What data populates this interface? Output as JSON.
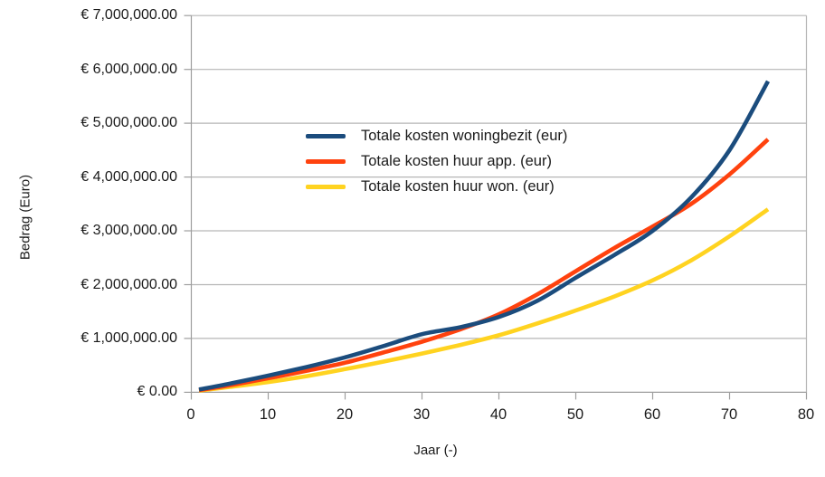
{
  "colors": {
    "background": "#ffffff",
    "gridline": "#b6b6b6",
    "axis": "#9e9e9e",
    "text": "#1a1a1a",
    "series_blue": "#1b4c7d",
    "series_red": "#ff420e",
    "series_yellow": "#ffd320"
  },
  "chart_data": {
    "type": "line",
    "title": "",
    "xlabel": "Jaar (-)",
    "ylabel": "Bedrag (Euro)",
    "xlim": [
      0,
      80
    ],
    "ylim": [
      0,
      7000000
    ],
    "grid": "horizontal-only",
    "legend_position": "inside-upper-middle, transparent background",
    "x_tick_values": [
      0,
      10,
      20,
      30,
      40,
      50,
      60,
      70,
      80
    ],
    "x_tick_labels": [
      "0",
      "10",
      "20",
      "30",
      "40",
      "50",
      "60",
      "70",
      "80"
    ],
    "y_tick_values": [
      7000000,
      6000000,
      5000000,
      4000000,
      3000000,
      2000000,
      1000000,
      0
    ],
    "y_tick_labels": [
      "€ 7,000,000.00",
      "€ 6,000,000.00",
      "€ 5,000,000.00",
      "€ 4,000,000.00",
      "€ 3,000,000.00",
      "€ 2,000,000.00",
      "€ 1,000,000.00",
      "€ 0.00"
    ],
    "x": [
      1,
      5,
      10,
      15,
      20,
      25,
      30,
      35,
      40,
      45,
      50,
      55,
      60,
      65,
      70,
      75
    ],
    "series": [
      {
        "name": "Totale kosten woningbezit (eur)",
        "color": "#1b4c7d",
        "values": [
          50000,
          160000,
          310000,
          470000,
          650000,
          860000,
          1080000,
          1210000,
          1400000,
          1700000,
          2130000,
          2550000,
          3000000,
          3620000,
          4500000,
          5780000
        ]
      },
      {
        "name": "Totale kosten huur app. (eur)",
        "color": "#ff420e",
        "values": [
          40000,
          130000,
          260000,
          400000,
          550000,
          740000,
          940000,
          1170000,
          1450000,
          1820000,
          2250000,
          2680000,
          3080000,
          3500000,
          4050000,
          4700000
        ]
      },
      {
        "name": "Totale kosten huur won. (eur)",
        "color": "#ffd320",
        "values": [
          30000,
          100000,
          190000,
          300000,
          430000,
          570000,
          720000,
          880000,
          1060000,
          1280000,
          1520000,
          1780000,
          2080000,
          2450000,
          2900000,
          3400000
        ]
      }
    ],
    "annotations": {
      "curve_domain_years": [
        1,
        75
      ],
      "crossings": [
        "huur app. overtakes woningbezit ~year 38",
        "woningbezit overtakes huur app. ~year 63"
      ]
    }
  }
}
